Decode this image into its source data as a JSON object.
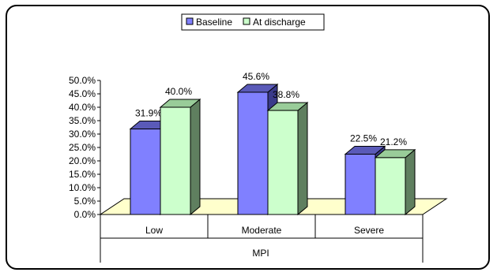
{
  "chart_data": {
    "type": "bar",
    "categories": [
      "Low",
      "Moderate",
      "Severe"
    ],
    "series": [
      {
        "name": "Baseline",
        "values": [
          31.9,
          45.6,
          22.5
        ],
        "labels": [
          "31.9%",
          "45.6%",
          "22.5%"
        ]
      },
      {
        "name": "At discharge",
        "values": [
          40.0,
          38.8,
          21.2
        ],
        "labels": [
          "40.0%",
          "38.8%",
          "21.2%"
        ]
      }
    ],
    "xlabel": "MPI",
    "ylabel": "",
    "ylim": [
      0,
      50
    ],
    "yticks": [
      "0.0%",
      "5.0%",
      "10.0%",
      "15.0%",
      "20.0%",
      "25.0%",
      "30.0%",
      "35.0%",
      "40.0%",
      "45.0%",
      "50.0%"
    ],
    "grid": false,
    "legend_position": "top-center",
    "colors": {
      "baseline": "#8080ff",
      "baseline_top": "#5a5ab8",
      "baseline_side": "#3a3a8a",
      "discharge": "#ccffcc",
      "discharge_top": "#99cc99",
      "discharge_side": "#5f7f5f",
      "floor": "#ffffcc"
    }
  }
}
